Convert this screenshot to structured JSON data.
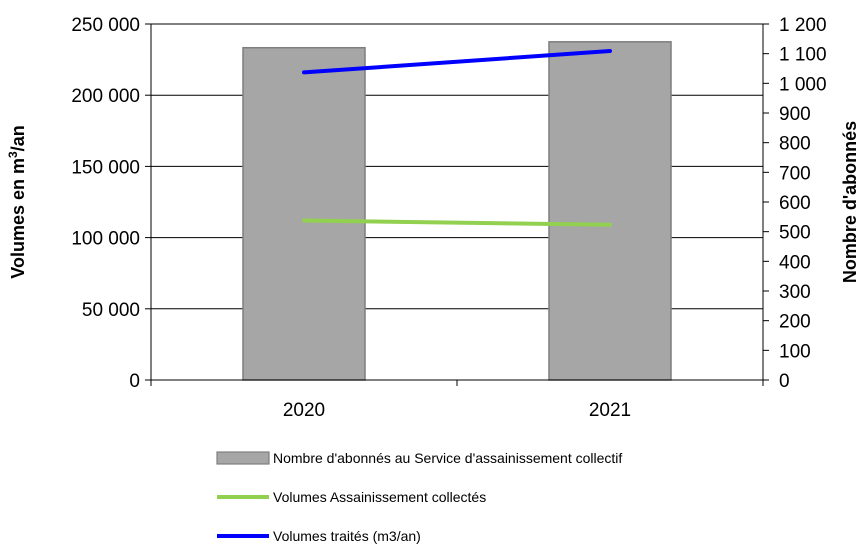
{
  "chart_data": {
    "type": "bar",
    "categories": [
      "2020",
      "2021"
    ],
    "y_left": {
      "label_main": "Volumes en m",
      "label_sup": "3",
      "label_end": "/an",
      "range": [
        0,
        250000
      ],
      "ticks": [
        0,
        50000,
        100000,
        150000,
        200000,
        250000
      ],
      "tick_labels": [
        "0",
        "50 000",
        "100 000",
        "150 000",
        "200 000",
        "250 000"
      ]
    },
    "y_right": {
      "label": "Nombre d'abonnés",
      "range": [
        0,
        1200
      ],
      "ticks": [
        0,
        100,
        200,
        300,
        400,
        500,
        600,
        700,
        800,
        900,
        1000,
        1100,
        1200
      ],
      "tick_labels": [
        "0",
        "100",
        "200",
        "300",
        "400",
        "500",
        "600",
        "700",
        "800",
        "900",
        "1 000",
        "1 100",
        "1 200"
      ]
    },
    "grid": true,
    "legend_position": "bottom",
    "series": [
      {
        "name": "Nombre d'abonnés au Service d'assainissement collectif",
        "kind": "bar",
        "axis": "right",
        "color": "#a6a6a6",
        "values": [
          1120,
          1140
        ]
      },
      {
        "name": "Volumes Assainissement collectés",
        "kind": "line",
        "axis": "left",
        "color": "#92d050",
        "values": [
          112000,
          109000
        ]
      },
      {
        "name": "Volumes traités (m3/an)",
        "kind": "line",
        "axis": "left",
        "color": "#0000ff",
        "values": [
          216000,
          231000
        ]
      }
    ]
  }
}
